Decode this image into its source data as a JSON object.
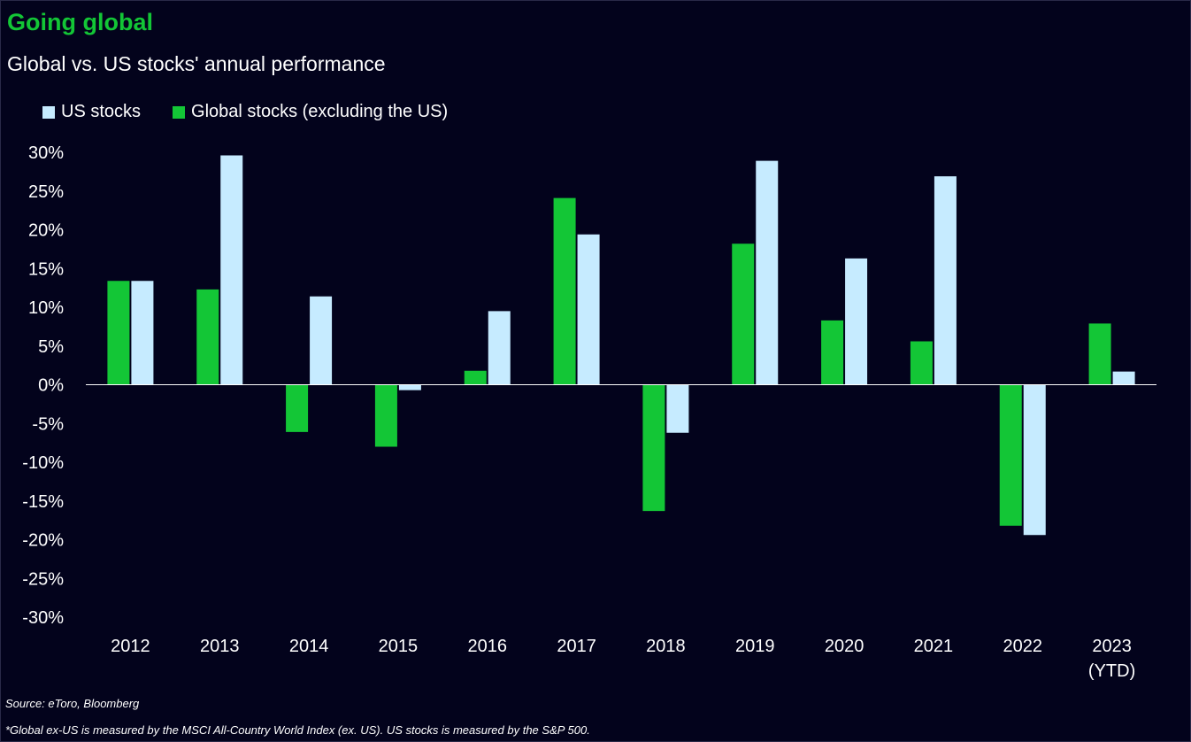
{
  "header": {
    "title": "Going global",
    "subtitle": "Global vs. US stocks' annual performance"
  },
  "footer": {
    "source": "Source: eToro, Bloomberg",
    "footnote": "*Global ex-US is measured by the MSCI All-Country World Index (ex. US). US stocks is measured by the S&P 500."
  },
  "colors": {
    "background": "#03031c",
    "title": "#13c636",
    "us": "#c6ebff",
    "global": "#13c636",
    "axis": "#ffffff"
  },
  "chart_data": {
    "type": "bar",
    "title": "Global vs. US stocks' annual performance",
    "categories": [
      "2012",
      "2013",
      "2014",
      "2015",
      "2016",
      "2017",
      "2018",
      "2019",
      "2020",
      "2021",
      "2022",
      "2023\n(YTD)"
    ],
    "series": [
      {
        "name": "US stocks",
        "color": "#c6ebff",
        "values": [
          13.4,
          29.6,
          11.4,
          -0.7,
          9.5,
          19.4,
          -6.2,
          28.9,
          16.3,
          26.9,
          -19.4,
          1.7
        ]
      },
      {
        "name": "Global stocks (excluding the US)",
        "color": "#13c636",
        "values": [
          13.4,
          12.3,
          -6.1,
          -8.0,
          1.8,
          24.1,
          -16.3,
          18.2,
          8.3,
          5.6,
          -18.2,
          7.9
        ]
      }
    ],
    "bar_order": [
      "Global stocks (excluding the US)",
      "US stocks"
    ],
    "legend_order": [
      "US stocks",
      "Global stocks (excluding the US)"
    ],
    "ylim": [
      -30,
      30
    ],
    "yticks": [
      30,
      25,
      20,
      15,
      10,
      5,
      0,
      -5,
      -10,
      -15,
      -20,
      -25,
      -30
    ],
    "ytick_format": "%",
    "grid": false,
    "legend_position": "top-left",
    "xlabel": "",
    "ylabel": ""
  }
}
